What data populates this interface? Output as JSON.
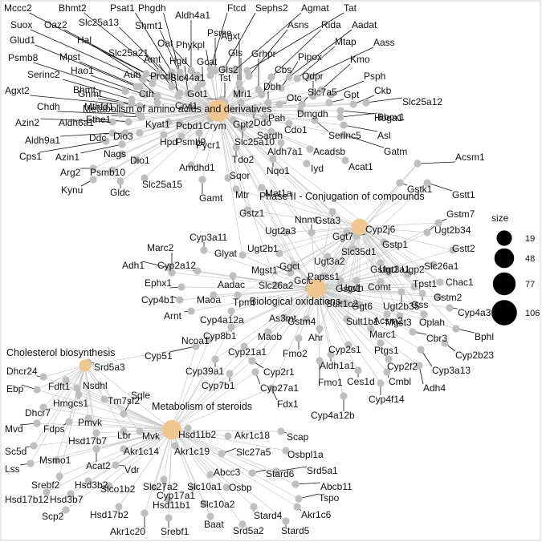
{
  "legend": {
    "title": "size",
    "entries": [
      {
        "label": "19",
        "value": 19
      },
      {
        "label": "48",
        "value": 48
      },
      {
        "label": "77",
        "value": 77
      },
      {
        "label": "106",
        "value": 106
      }
    ]
  },
  "colors": {
    "edge": "#c8c8c8",
    "gene_node": "#bfbfbf",
    "term_node": "#f1c791",
    "leader": "#111111",
    "text": "#111111"
  },
  "categories": [
    {
      "name": "Metabolism of amino acids and derivatives",
      "size": 106
    },
    {
      "name": "Phase II - Conjugation of compounds",
      "size": 48
    },
    {
      "name": "Biological oxidations",
      "size": 77
    },
    {
      "name": "Metabolism of steroids",
      "size": 77
    },
    {
      "name": "Cholesterol biosynthesis",
      "size": 19
    }
  ],
  "genes": [
    "Mccc2",
    "Bhmt2",
    "Psat1",
    "Phgdh",
    "Aldh4a1",
    "Ftcd",
    "Sephs2",
    "Agmat",
    "Tat",
    "Suox",
    "Oaz2",
    "Slc25a13",
    "Shmt1",
    "Psme",
    "Asns",
    "Rida",
    "Aadat",
    "Glud1",
    "Hal",
    "Oat",
    "Phykpl",
    "Agxt",
    "Mtap",
    "Aass",
    "Psmb8",
    "Mpst",
    "Slc25a21",
    "Amt",
    "Hgd",
    "Gcat",
    "Gls",
    "Grhpr",
    "Pipox",
    "Kmo",
    "Serinc2",
    "Hao1",
    "Auh",
    "Prodh",
    "Slc44a1",
    "Gls2",
    "Cbs",
    "Qdpr",
    "Psph",
    "Agxt2",
    "Bhmt",
    "Gnmt",
    "Cth",
    "Tst",
    "Mri1",
    "Dbh",
    "Otc",
    "Slc7a5",
    "Gpt",
    "Ckb",
    "Slc25a12",
    "Chdh",
    "Mthfd1",
    "Cryl1",
    "Got1",
    "Ddo",
    "Dmgdh",
    "Hoga1",
    "Azin2",
    "Aldh6a1",
    "Ethe1",
    "Gpt2",
    "Pah",
    "Bbox1",
    "Aldh9a1",
    "Ddc",
    "Dio3",
    "Kyat1",
    "Pcbd1",
    "Crym",
    "Cdo1",
    "Serinc5",
    "Asl",
    "Cps1",
    "Azin1",
    "Hpd",
    "Psmb9",
    "Pycr1",
    "Slc25a10",
    "Sardh",
    "Gatm",
    "Nags",
    "Arg2",
    "Dio1",
    "Aldh7a1",
    "Acadsb",
    "Psmb10",
    "Amdhd1",
    "Tdo2",
    "Nqo1",
    "Iyd",
    "Acat1",
    "Kynu",
    "Gldc",
    "Slc25a15",
    "Sqor",
    "Gamt",
    "Mtr",
    "Mat1a",
    "Gstz1",
    "Acsm1",
    "Gstk1",
    "Gstt1",
    "Gsta3",
    "Gstm7",
    "Nnmt",
    "Ugt2b34",
    "Ugt2a3",
    "Ggt7",
    "Cyp2j6",
    "Gstp1",
    "Cyp3a11",
    "Marc2",
    "Glyat",
    "Ugt2b1",
    "Slc35d1",
    "Gstt2",
    "Adh1",
    "Cyp2a12",
    "Mgst1",
    "Ugt3a2",
    "Gstm1",
    "Ugt3a1",
    "Ugp2",
    "Slc26a1",
    "Ggct",
    "Papss1",
    "Chac1",
    "Ephx1",
    "Aadac",
    "Slc26a2",
    "Gclc",
    "Ugdh",
    "Comt",
    "Tpst1",
    "Cyp4b1",
    "Maoa",
    "Tpmt",
    "Gsto1",
    "Ugt2b35",
    "Gss",
    "Gstm2",
    "Arnt",
    "Cyp4a12a",
    "Sult1c2",
    "Ggt6",
    "Acsm2",
    "Mgst3",
    "Oplah",
    "Cyp4a31",
    "As3mt",
    "Gstm4",
    "Sult1b1",
    "Bphl",
    "Ncoa1",
    "Cyp8b1",
    "Maob",
    "Ahr",
    "Marc1",
    "Cbr3",
    "Cyp2b23",
    "Cyp51",
    "Cyp21a1",
    "Fmo2",
    "Cyp2s1",
    "Ptgs1",
    "Cyp3a13",
    "Aldh1a1",
    "Cyp2f2",
    "Cyp39a1",
    "Cyp2r1",
    "Ces1d",
    "Cmbl",
    "Adh4",
    "Cyp7b1",
    "Cyp27a1",
    "Fmo1",
    "Cyp4f14",
    "Fdx1",
    "Cyp4a12b",
    "Srd5a3",
    "Dhcr24",
    "Fdft1",
    "Nsdhl",
    "Ebp",
    "Hmgcs1",
    "Tm7sf2",
    "Dhcr7",
    "Sqle",
    "Mvd",
    "Fdps",
    "Pmvk",
    "Hsd17b7",
    "Lbr",
    "Mvk",
    "Hsd11b2",
    "Akr1c18",
    "Scap",
    "Sc5d",
    "Acat2",
    "Akr1c14",
    "Akr1c19",
    "Slc27a5",
    "Osbpl1a",
    "Lss",
    "Msmo1",
    "Vdr",
    "Stard6",
    "Srd5a1",
    "Srebf2",
    "Hsd3b2",
    "Slco1b2",
    "Abcc3",
    "Hsd17b12",
    "Hsd3b7",
    "Cyp17a1",
    "Slc27a2",
    "Slc10a1",
    "Osbp",
    "Abcb11",
    "Tspo",
    "Scp2",
    "Hsd17b2",
    "Hsd11b1",
    "Slc10a2",
    "Stard4",
    "Akr1c6",
    "Akr1c20",
    "Srebf1",
    "Baat",
    "Srd5a2",
    "Stard5"
  ]
}
